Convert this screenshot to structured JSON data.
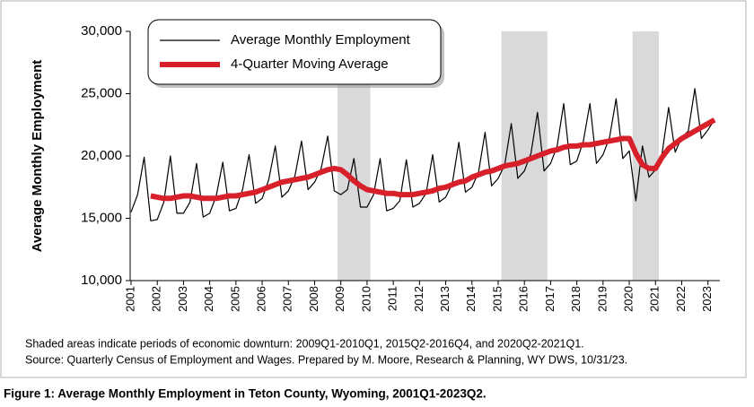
{
  "chart_data": {
    "type": "line",
    "y_label": "Average Monthly Employment",
    "categories": [
      "2001",
      null,
      null,
      null,
      "2002",
      null,
      null,
      null,
      "2003",
      null,
      null,
      null,
      "2004",
      null,
      null,
      null,
      "2005",
      null,
      null,
      null,
      "2006",
      null,
      null,
      null,
      "2007",
      null,
      null,
      null,
      "2008",
      null,
      null,
      null,
      "2009",
      null,
      null,
      null,
      "2010",
      null,
      null,
      null,
      "2011",
      null,
      null,
      null,
      "2012",
      null,
      null,
      null,
      "2013",
      null,
      null,
      null,
      "2014",
      null,
      null,
      null,
      "2015",
      null,
      null,
      null,
      "2016",
      null,
      null,
      null,
      "2017",
      null,
      null,
      null,
      "2018",
      null,
      null,
      null,
      "2019",
      null,
      null,
      null,
      "2020",
      null,
      null,
      null,
      "2021",
      null,
      null,
      null,
      "2022",
      null,
      null,
      null,
      "2023",
      null
    ],
    "series": [
      {
        "name": "Average Monthly Employment",
        "color": "#000000",
        "width": 1.2,
        "values": [
          15500,
          16900,
          19900,
          14800,
          14900,
          16300,
          20000,
          15400,
          15400,
          16300,
          19400,
          15100,
          15400,
          16800,
          19500,
          15600,
          15800,
          17300,
          20100,
          16200,
          16600,
          18100,
          20800,
          16700,
          17200,
          18400,
          21200,
          17300,
          17900,
          19000,
          21600,
          17200,
          16900,
          17300,
          19800,
          15900,
          15900,
          16900,
          19800,
          15600,
          15800,
          16400,
          19700,
          15900,
          16200,
          17000,
          20100,
          16300,
          16700,
          17800,
          21100,
          17100,
          17500,
          18700,
          21900,
          17600,
          18200,
          19300,
          22600,
          18200,
          18800,
          20200,
          23500,
          18800,
          19400,
          20800,
          24200,
          19300,
          19600,
          21200,
          24200,
          19400,
          20100,
          21500,
          24600,
          19800,
          20400,
          16400,
          20800,
          18300,
          18900,
          20200,
          23900,
          20300,
          21500,
          22000,
          25400,
          21400,
          22100,
          22900
        ]
      },
      {
        "name": "4-Quarter Moving Average",
        "color": "#d7202a",
        "width": 6,
        "values": [
          null,
          null,
          null,
          16800,
          16700,
          16600,
          16600,
          16700,
          16800,
          16800,
          16700,
          16600,
          16600,
          16600,
          16700,
          16800,
          16800,
          16900,
          17000,
          17100,
          17300,
          17500,
          17700,
          17900,
          18000,
          18100,
          18200,
          18300,
          18500,
          18700,
          18900,
          19000,
          18900,
          18500,
          18000,
          17600,
          17300,
          17200,
          17100,
          17000,
          17000,
          16900,
          16900,
          16900,
          17000,
          17100,
          17200,
          17400,
          17500,
          17700,
          17900,
          18000,
          18300,
          18500,
          18700,
          18800,
          19000,
          19200,
          19300,
          19400,
          19600,
          19800,
          20000,
          20200,
          20400,
          20500,
          20700,
          20800,
          20800,
          20900,
          20900,
          21000,
          21100,
          21200,
          21300,
          21400,
          21400,
          20200,
          19300,
          19000,
          19000,
          19900,
          20600,
          21000,
          21400,
          21700,
          22000,
          22300,
          22600,
          22900
        ]
      }
    ],
    "shaded": [
      {
        "from": 32,
        "to": 36
      },
      {
        "from": 57,
        "to": 63
      },
      {
        "from": 77,
        "to": 80
      }
    ],
    "shade_color": "#d9d9db",
    "ylim": [
      10000,
      30000
    ],
    "yticks": [
      {
        "value": 10000,
        "label": "10,000"
      },
      {
        "value": 15000,
        "label": "15,000"
      },
      {
        "value": 20000,
        "label": "20,000"
      },
      {
        "value": 25000,
        "label": "25,000"
      },
      {
        "value": 30000,
        "label": "30,000"
      }
    ],
    "legend": "upper left",
    "notes": [
      "Shaded areas indicate periods of economic downturn: 2009Q1-2010Q1, 2015Q2-2016Q4, and 2020Q2-2021Q1.",
      "Source: Quarterly Census of Employment and Wages. Prepared by M. Moore, Research & Planning, WY DWS, 10/31/23."
    ],
    "caption": "Figure 1: Average Monthly Employment in Teton County, Wyoming, 2001Q1-2023Q2."
  }
}
